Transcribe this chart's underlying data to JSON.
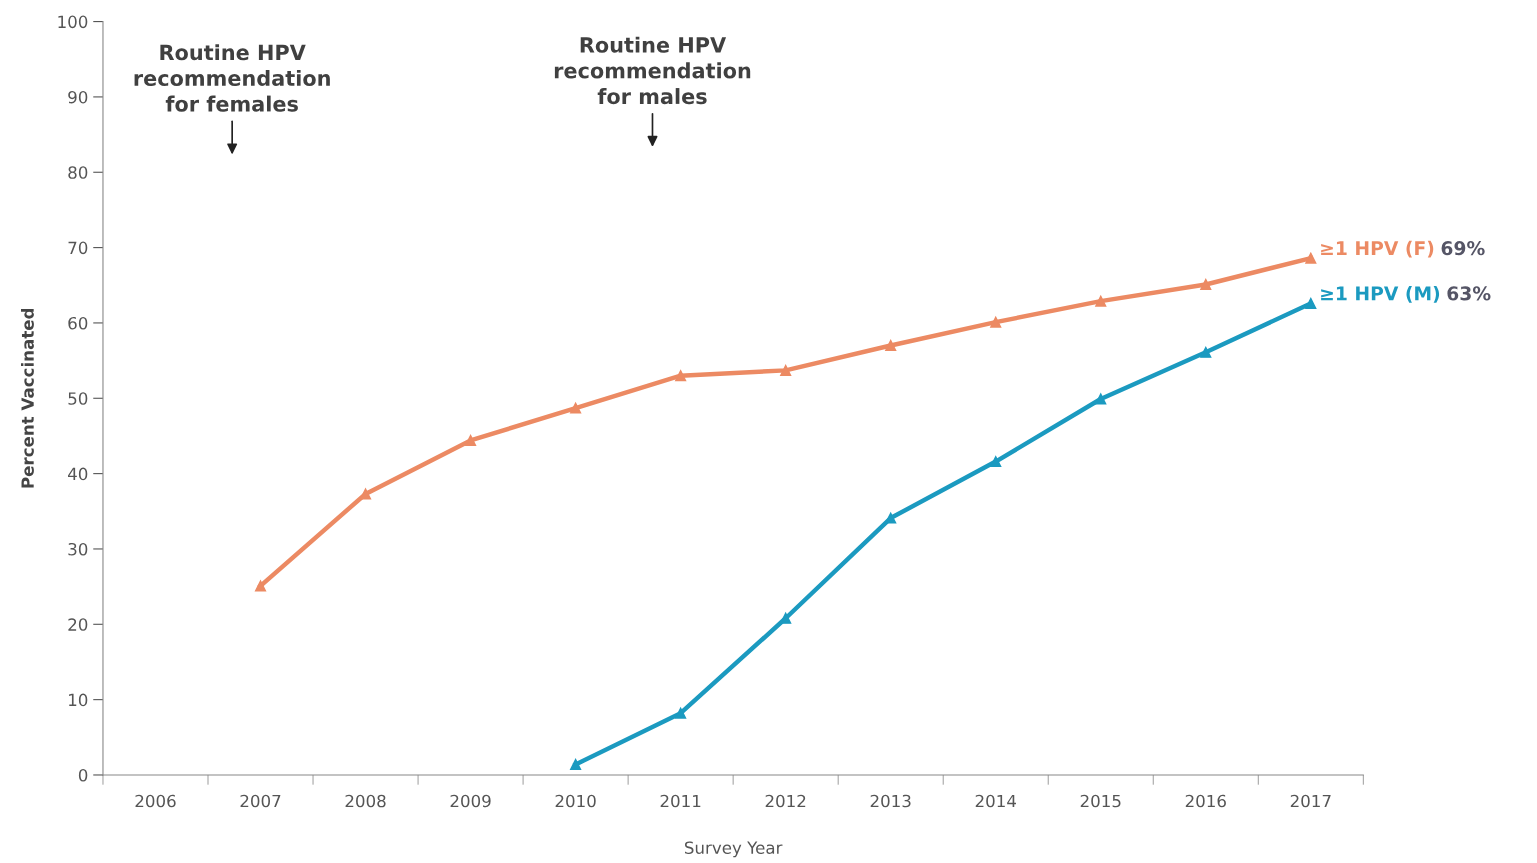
{
  "chart_data": {
    "type": "line",
    "xlabel": "Survey Year",
    "ylabel": "Percent Vaccinated",
    "categories": [
      "2006",
      "2007",
      "2008",
      "2009",
      "2010",
      "2011",
      "2012",
      "2013",
      "2014",
      "2015",
      "2016",
      "2017"
    ],
    "series": [
      {
        "name": "≥1 HPV (F)",
        "color": "#ec8a63",
        "values": [
          null,
          25.1,
          37.3,
          44.4,
          48.7,
          53.0,
          53.7,
          57.0,
          60.1,
          62.9,
          65.1,
          68.6
        ]
      },
      {
        "name": "≥1 HPV (M)",
        "color": "#1b9ac0",
        "values": [
          null,
          null,
          null,
          null,
          1.4,
          8.2,
          20.8,
          34.1,
          41.6,
          49.9,
          56.1,
          62.6
        ]
      }
    ],
    "annotations": [
      "Routine HPV\nrecommendation\nfor females",
      "Routine HPV\nrecommendation\nfor males",
      "69%",
      "63%"
    ],
    "ylim": [
      0,
      100
    ],
    "yticks": [
      0,
      10,
      20,
      30,
      40,
      50,
      60,
      70,
      80,
      90,
      100
    ],
    "marker": "triangle",
    "line_style": "solid",
    "grid": false,
    "legend": false
  }
}
